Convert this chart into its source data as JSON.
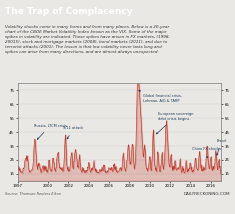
{
  "title": "The Trap of Complacency",
  "subtitle": "Volatility shocks come in many forms and from many places. Below is a 20-year\nchart of the CBOE Market Volatility Index known as the VIX. Some of the major\nspikes in volatility are indicated. These spikes have arisen in FX markets, (1998,\n20015), stock and mortgage markets (2008), bond markets (2011), and due to\nterrorist attacks (2001). The lesson is that low volatility never lasts long and\nspikes can arise from many directions, and are almost always unexpected.",
  "source": "Source: Thomson Reuters Eikon",
  "brand": "DAILYRECKONING.COM",
  "bg_color": "#eae8e4",
  "title_bg": "#1a1a1a",
  "title_color": "#ffffff",
  "line_color": "#c0392b",
  "fill_color": "#c0392b",
  "annotation_color": "#1a3a5c",
  "grid_color": "#cccccc",
  "x_ticks": [
    1997,
    2000,
    2002,
    2004,
    2006,
    2008,
    2010,
    2012,
    2014,
    2016
  ],
  "y_ticks": [
    15,
    25,
    35,
    45,
    55,
    65,
    75
  ],
  "xlim": [
    1997,
    2017
  ],
  "ylim": [
    10,
    80
  ]
}
